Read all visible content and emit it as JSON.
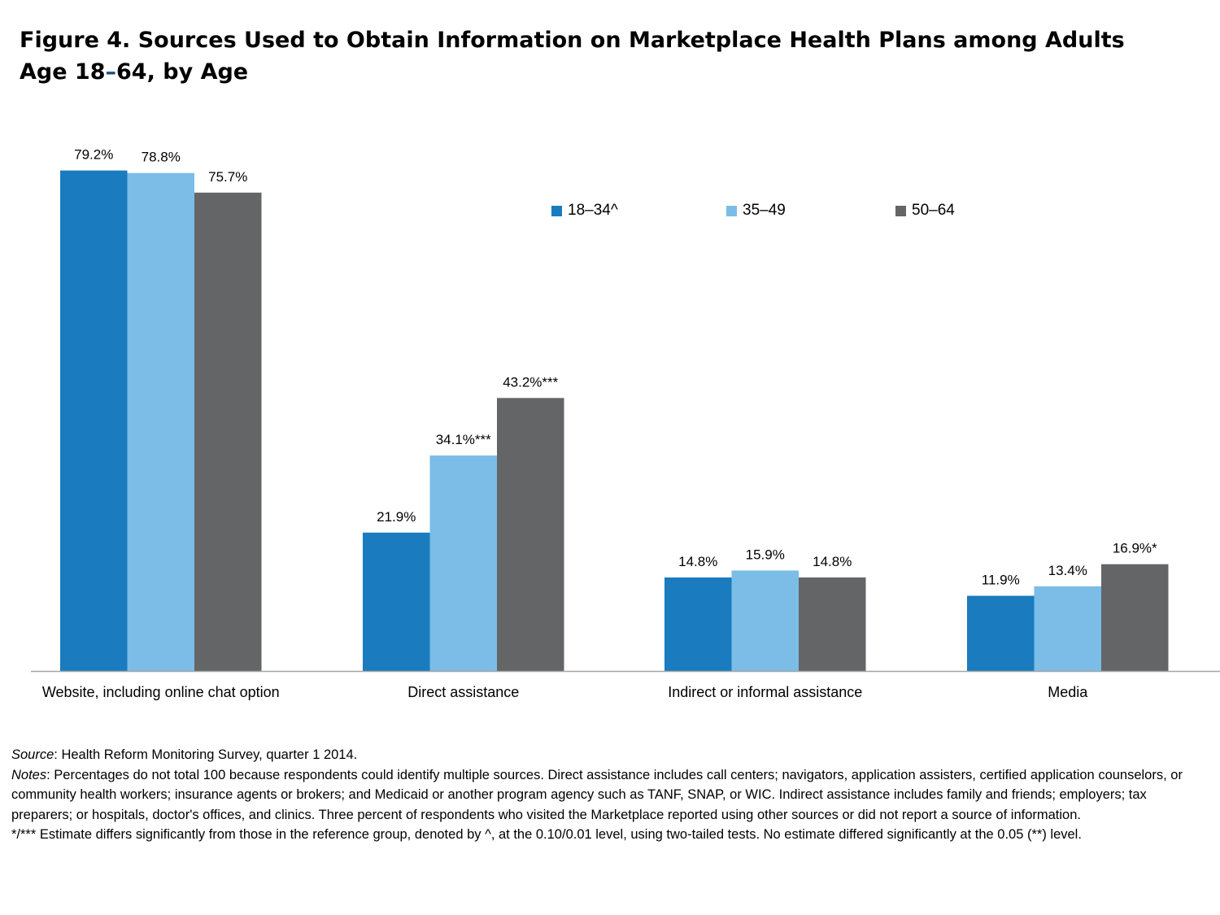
{
  "title_line1": "Figure 4. Sources Used to Obtain Information on Marketplace Health Plans among Adults",
  "title_line2_a": "Age 18",
  "title_line2_dash": "–",
  "title_line2_b": "64, by Age",
  "colors": {
    "s1": "#1a7bbf",
    "s2": "#7bbde6",
    "s3": "#646567",
    "axis": "#a6a6a6"
  },
  "chart_data": {
    "type": "bar",
    "categories": [
      "Website, including online chat option",
      "Direct assistance",
      "Indirect or informal assistance",
      "Media"
    ],
    "series": [
      {
        "name": "18–34^",
        "values": [
          79.2,
          21.9,
          14.8,
          11.9
        ],
        "labels": [
          "79.2%",
          "21.9%",
          "14.8%",
          "11.9%"
        ]
      },
      {
        "name": "35–49",
        "values": [
          78.8,
          34.1,
          15.9,
          13.4
        ],
        "labels": [
          "78.8%",
          "34.1%***",
          "15.9%",
          "13.4%"
        ]
      },
      {
        "name": "50–64",
        "values": [
          75.7,
          43.2,
          14.8,
          16.9
        ],
        "labels": [
          "75.7%",
          "43.2%***",
          "14.8%",
          "16.9%*"
        ]
      }
    ],
    "ylim": [
      0,
      100
    ],
    "grid": false,
    "legend": "top-right"
  },
  "footnotes": {
    "source_label": "Source",
    "source_text": ": Health Reform Monitoring Survey, quarter 1 2014.",
    "notes_label": "Notes",
    "notes_text": ": Percentages do not total 100 because respondents could identify multiple sources. Direct assistance includes call centers; navigators, application assisters, certified application counselors, or community health workers; insurance agents or brokers; and Medicaid or another program agency such as TANF, SNAP, or WIC. Indirect assistance includes family and friends; employers; tax preparers; or hospitals, doctor's offices, and clinics. Three percent of respondents who visited the Marketplace reported using other sources or did not report a source of information.",
    "significance_text": "*/*** Estimate differs significantly from those in the reference group, denoted by ^, at the 0.10/0.01 level, using two-tailed tests. No estimate differed significantly at the 0.05 (**) level."
  }
}
